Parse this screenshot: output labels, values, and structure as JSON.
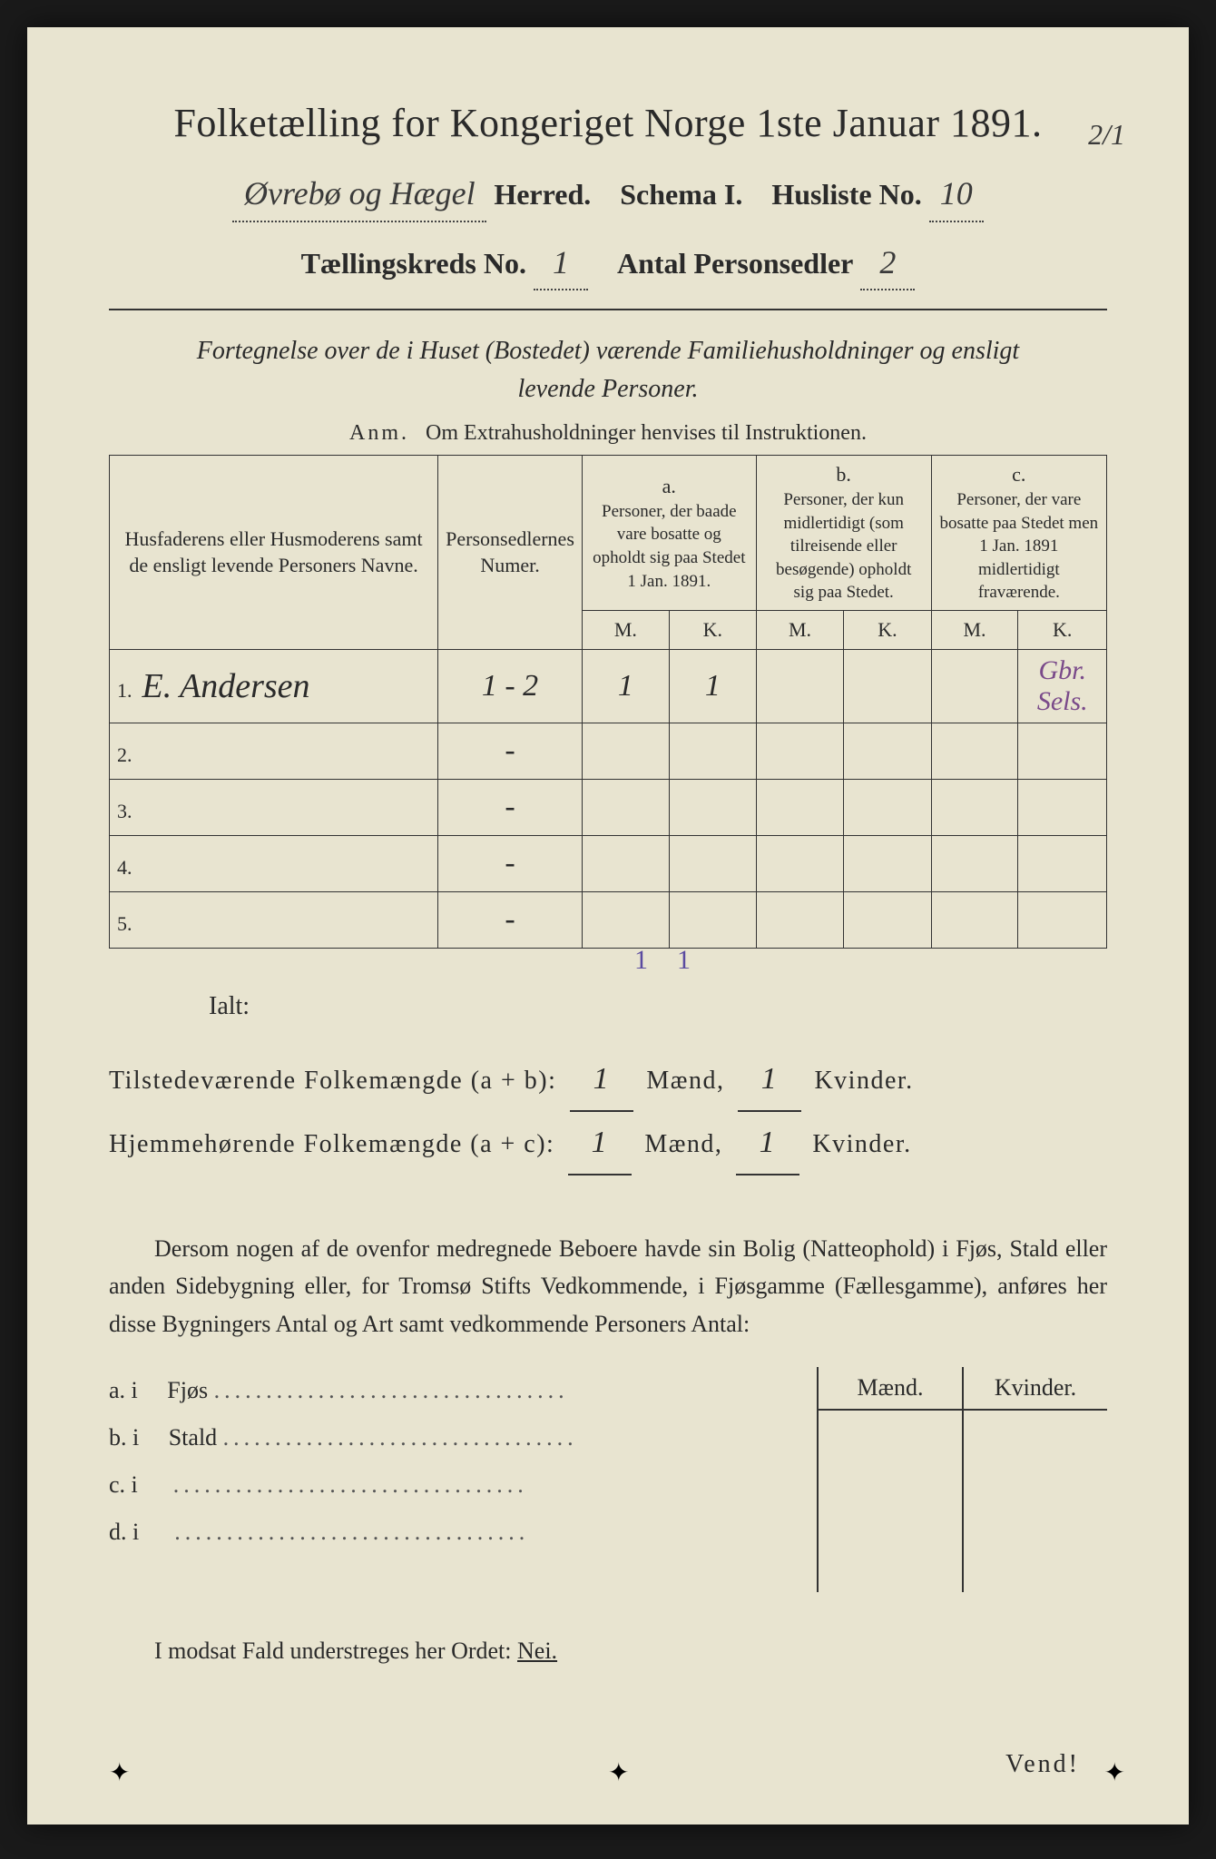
{
  "header": {
    "title": "Folketælling for Kongeriget Norge 1ste Januar 1891.",
    "herred_value": "Øvrebø og Hægel",
    "herred_label": "Herred.",
    "schema_label": "Schema I.",
    "husliste_label": "Husliste No.",
    "husliste_value": "10",
    "kreds_label": "Tællingskreds No.",
    "kreds_value": "1",
    "antal_label": "Antal Personsedler",
    "antal_value": "2",
    "top_fraction": "2/1"
  },
  "subtitle": {
    "line1": "Fortegnelse over de i Huset (Bostedet) værende Familiehusholdninger og ensligt",
    "line2": "levende Personer."
  },
  "anm": {
    "label": "Anm.",
    "text": "Om Extrahusholdninger henvises til Instruktionen."
  },
  "table_headers": {
    "col1": "Husfaderens eller Husmoderens samt de ensligt levende Personers Navne.",
    "col2": "Personsedlernes Numer.",
    "col_a_label": "a.",
    "col_a": "Personer, der baade vare bosatte og opholdt sig paa Stedet 1 Jan. 1891.",
    "col_b_label": "b.",
    "col_b": "Personer, der kun midlertidigt (som tilreisende eller besøgende) opholdt sig paa Stedet.",
    "col_c_label": "c.",
    "col_c": "Personer, der vare bosatte paa Stedet men 1 Jan. 1891 midlertidigt fraværende.",
    "M": "M.",
    "K": "K."
  },
  "rows": [
    {
      "num": "1.",
      "name": "E. Andersen",
      "sedler": "1 - 2",
      "a_m": "1",
      "a_k": "1",
      "b_m": "",
      "b_k": "",
      "c_m": "",
      "c_k": "",
      "note": "Gbr. Sels."
    },
    {
      "num": "2.",
      "name": "",
      "sedler": "-",
      "a_m": "",
      "a_k": "",
      "b_m": "",
      "b_k": "",
      "c_m": "",
      "c_k": "",
      "note": ""
    },
    {
      "num": "3.",
      "name": "",
      "sedler": "-",
      "a_m": "",
      "a_k": "",
      "b_m": "",
      "b_k": "",
      "c_m": "",
      "c_k": "",
      "note": ""
    },
    {
      "num": "4.",
      "name": "",
      "sedler": "-",
      "a_m": "",
      "a_k": "",
      "b_m": "",
      "b_k": "",
      "c_m": "",
      "c_k": "",
      "note": ""
    },
    {
      "num": "5.",
      "name": "",
      "sedler": "-",
      "a_m": "",
      "a_k": "",
      "b_m": "",
      "b_k": "",
      "c_m": "",
      "c_k": "",
      "note": ""
    }
  ],
  "tally": {
    "a_m": "1",
    "a_k": "1"
  },
  "totals": {
    "ialt": "Ialt:",
    "line1_label": "Tilstedeværende Folkemængde (a + b):",
    "line2_label": "Hjemmehørende Folkemængde (a + c):",
    "maend": "Mænd,",
    "kvinder": "Kvinder.",
    "l1_m": "1",
    "l1_k": "1",
    "l2_m": "1",
    "l2_k": "1"
  },
  "paragraph": "Dersom nogen af de ovenfor medregnede Beboere havde sin Bolig (Natteophold) i Fjøs, Stald eller anden Sidebygning eller, for Tromsø Stifts Vedkommende, i Fjøsgamme (Fællesgamme), anføres her disse Bygningers Antal og Art samt vedkommende Personers Antal:",
  "buildings": {
    "header_m": "Mænd.",
    "header_k": "Kvinder.",
    "rows": [
      {
        "label": "a.  i",
        "name": "Fjøs"
      },
      {
        "label": "b.  i",
        "name": "Stald"
      },
      {
        "label": "c.  i",
        "name": ""
      },
      {
        "label": "d.  i",
        "name": ""
      }
    ]
  },
  "nei": {
    "text": "I modsat Fald understreges her Ordet:",
    "word": "Nei."
  },
  "vend": "Vend!",
  "colors": {
    "paper": "#e8e4d0",
    "ink": "#2a2a2a",
    "purple_ink": "#7a4a8a",
    "background": "#1a1a1a"
  }
}
